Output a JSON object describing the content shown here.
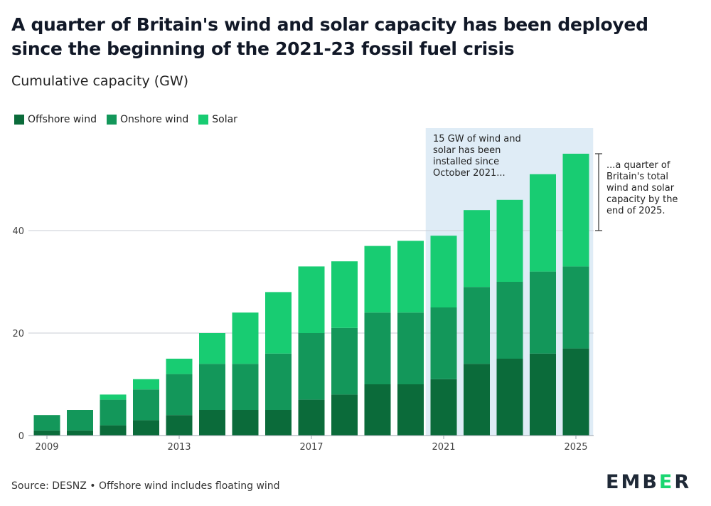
{
  "title": "A quarter of Britain's wind and solar capacity has been deployed since the beginning of the 2021-23 fossil fuel crisis",
  "subtitle": "Cumulative capacity (GW)",
  "legend": [
    {
      "label": "Offshore wind",
      "color": "#0b6b3a"
    },
    {
      "label": "Onshore wind",
      "color": "#13975a"
    },
    {
      "label": "Solar",
      "color": "#18cc72"
    }
  ],
  "annotation_box": "15 GW of wind and solar has been installed since October 2021...",
  "annotation_side": "...a quarter of Britain's total wind and solar capacity by the end of 2025.",
  "footer": {
    "source": "Source: DESNZ • Offshore wind includes floating wind",
    "logo": "EMBER"
  },
  "chart_data": {
    "type": "bar",
    "stacked": true,
    "categories": [
      "2009",
      "2010",
      "2011",
      "2012",
      "2013",
      "2014",
      "2015",
      "2016",
      "2017",
      "2018",
      "2019",
      "2020",
      "2021",
      "2022",
      "2023",
      "2024",
      "2025"
    ],
    "x_tick_labels": [
      "2009",
      "2013",
      "2017",
      "2021",
      "2025"
    ],
    "series": [
      {
        "name": "Offshore wind",
        "color": "#0b6b3a",
        "values": [
          1,
          1,
          2,
          3,
          4,
          5,
          5,
          5,
          7,
          8,
          10,
          10,
          11,
          14,
          15,
          16,
          17
        ]
      },
      {
        "name": "Onshore wind",
        "color": "#13975a",
        "values": [
          3,
          4,
          5,
          6,
          8,
          9,
          9,
          11,
          13,
          13,
          14,
          14,
          14,
          15,
          15,
          16,
          16
        ]
      },
      {
        "name": "Solar",
        "color": "#18cc72",
        "values": [
          0,
          0,
          1,
          2,
          3,
          6,
          10,
          12,
          13,
          13,
          13,
          14,
          14,
          15,
          16,
          19,
          22
        ]
      }
    ],
    "ylim": [
      0,
      55
    ],
    "y_ticks": [
      0,
      20,
      40
    ],
    "grid": true,
    "highlight_range": [
      "2021",
      "2025"
    ]
  }
}
